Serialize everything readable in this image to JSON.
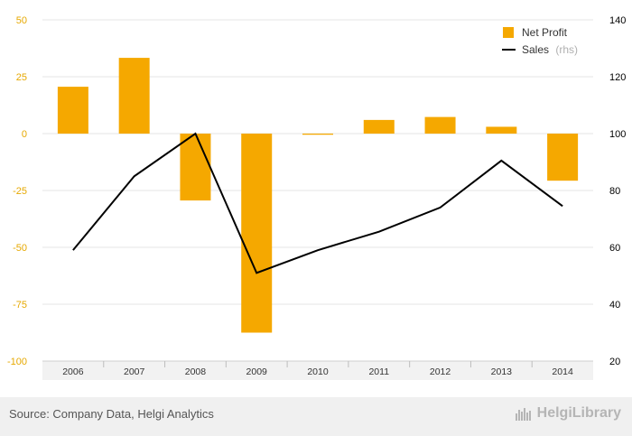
{
  "chart_data": {
    "type": "bar",
    "categories": [
      "2006",
      "2007",
      "2008",
      "2009",
      "2010",
      "2011",
      "2012",
      "2013",
      "2014"
    ],
    "series": [
      {
        "name": "Net Profit",
        "type": "bar",
        "axis": "left",
        "color": "#f5a800",
        "values": [
          20.6,
          33.3,
          -29.4,
          -87.5,
          -0.5,
          6.0,
          7.3,
          3.0,
          -20.7
        ]
      },
      {
        "name": "Sales",
        "type": "line",
        "axis": "right",
        "color": "#000000",
        "values": [
          59.0,
          85.0,
          100.0,
          51.0,
          59.0,
          65.5,
          74.0,
          90.5,
          74.5
        ]
      }
    ],
    "ylim": [
      -100,
      50
    ],
    "yticks": [
      "50",
      "25",
      "0",
      "-25",
      "-50",
      "-75",
      "-100"
    ],
    "y2lim": [
      20,
      140
    ],
    "y2ticks": [
      "140",
      "120",
      "100",
      "80",
      "60",
      "40",
      "20"
    ],
    "legend": {
      "position": "top-right",
      "sales_suffix": "(rhs)"
    },
    "grid": true,
    "left_axis_color": "#e6a800"
  },
  "footer": {
    "source": "Source: Company Data, Helgi Analytics",
    "logo_text": "HelgiLibrary",
    "logo_icon": "helgi-logo-icon"
  }
}
